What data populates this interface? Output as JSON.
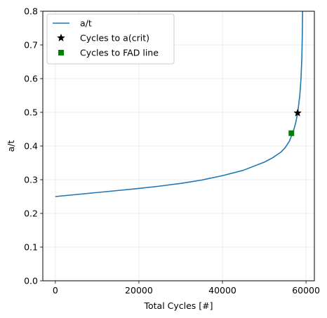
{
  "chart_data": {
    "type": "line",
    "xlabel": "Total Cycles [#]",
    "ylabel": "a/t",
    "xlim": [
      -3000,
      62000
    ],
    "ylim": [
      0,
      0.8
    ],
    "xticks": [
      0,
      20000,
      40000,
      60000
    ],
    "yticks": [
      0.0,
      0.1,
      0.2,
      0.3,
      0.4,
      0.5,
      0.6,
      0.7,
      0.8
    ],
    "xtick_labels": [
      "0",
      "20000",
      "40000",
      "60000"
    ],
    "ytick_labels": [
      "0.0",
      "0.1",
      "0.2",
      "0.3",
      "0.4",
      "0.5",
      "0.6",
      "0.7",
      "0.8"
    ],
    "grid": true,
    "legend_position": "upper-left",
    "series": [
      {
        "name": "a/t",
        "style": "line",
        "color": "#1f77b4",
        "x": [
          0,
          5000,
          10000,
          15000,
          20000,
          25000,
          30000,
          35000,
          40000,
          45000,
          50000,
          52000,
          54000,
          55000,
          56000,
          57000,
          57500,
          58000,
          58500,
          58800,
          59000,
          59100,
          59200
        ],
        "y": [
          0.25,
          0.256,
          0.262,
          0.268,
          0.274,
          0.281,
          0.289,
          0.299,
          0.312,
          0.328,
          0.352,
          0.365,
          0.382,
          0.395,
          0.414,
          0.445,
          0.467,
          0.498,
          0.548,
          0.6,
          0.66,
          0.72,
          0.81
        ]
      },
      {
        "name": "Cycles to a(crit)",
        "style": "star",
        "color": "#000000",
        "x": [
          58000
        ],
        "y": [
          0.498
        ]
      },
      {
        "name": "Cycles to FAD line",
        "style": "square",
        "color": "#008000",
        "x": [
          56500
        ],
        "y": [
          0.438
        ]
      }
    ]
  }
}
